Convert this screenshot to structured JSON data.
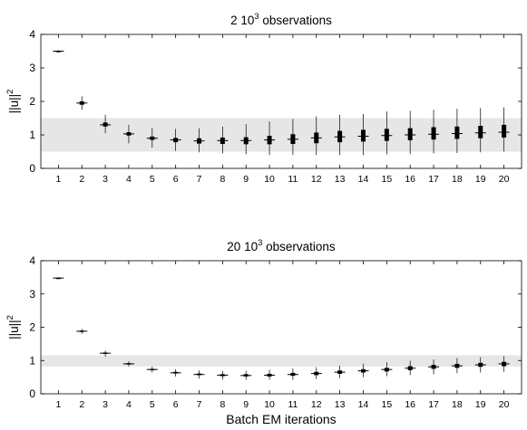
{
  "chart_data": [
    {
      "type": "boxplot",
      "title": "2 10",
      "title_sup": "3",
      "title_suffix": " observations",
      "ylabel": "||u||",
      "ylabel_sup": "2",
      "xlabel": "",
      "ylim": [
        0,
        4
      ],
      "yticks": [
        0,
        1,
        2,
        3,
        4
      ],
      "band": [
        0.5,
        1.5
      ],
      "band_color": "#e6e6e6",
      "categories": [
        "1",
        "2",
        "3",
        "4",
        "5",
        "6",
        "7",
        "8",
        "9",
        "10",
        "11",
        "12",
        "13",
        "14",
        "15",
        "16",
        "17",
        "18",
        "19",
        "20"
      ],
      "boxes": [
        {
          "median": 3.5,
          "q1": 3.49,
          "q3": 3.51,
          "lo": 3.47,
          "hi": 3.53
        },
        {
          "median": 1.95,
          "q1": 1.9,
          "q3": 2.0,
          "lo": 1.75,
          "hi": 2.15
        },
        {
          "median": 1.3,
          "q1": 1.25,
          "q3": 1.37,
          "lo": 1.05,
          "hi": 1.6
        },
        {
          "median": 1.03,
          "q1": 0.98,
          "q3": 1.08,
          "lo": 0.75,
          "hi": 1.3
        },
        {
          "median": 0.9,
          "q1": 0.85,
          "q3": 0.95,
          "lo": 0.62,
          "hi": 1.2
        },
        {
          "median": 0.85,
          "q1": 0.78,
          "q3": 0.91,
          "lo": 0.52,
          "hi": 1.18
        },
        {
          "median": 0.82,
          "q1": 0.74,
          "q3": 0.9,
          "lo": 0.48,
          "hi": 1.2
        },
        {
          "median": 0.83,
          "q1": 0.73,
          "q3": 0.92,
          "lo": 0.45,
          "hi": 1.25
        },
        {
          "median": 0.83,
          "q1": 0.72,
          "q3": 0.93,
          "lo": 0.42,
          "hi": 1.32
        },
        {
          "median": 0.85,
          "q1": 0.72,
          "q3": 0.97,
          "lo": 0.4,
          "hi": 1.4
        },
        {
          "median": 0.87,
          "q1": 0.73,
          "q3": 1.02,
          "lo": 0.4,
          "hi": 1.48
        },
        {
          "median": 0.91,
          "q1": 0.75,
          "q3": 1.07,
          "lo": 0.4,
          "hi": 1.55
        },
        {
          "median": 0.94,
          "q1": 0.78,
          "q3": 1.12,
          "lo": 0.4,
          "hi": 1.6
        },
        {
          "median": 0.96,
          "q1": 0.8,
          "q3": 1.15,
          "lo": 0.4,
          "hi": 1.62
        },
        {
          "median": 0.98,
          "q1": 0.82,
          "q3": 1.18,
          "lo": 0.42,
          "hi": 1.7
        },
        {
          "median": 1.0,
          "q1": 0.84,
          "q3": 1.2,
          "lo": 0.43,
          "hi": 1.72
        },
        {
          "median": 1.02,
          "q1": 0.86,
          "q3": 1.23,
          "lo": 0.45,
          "hi": 1.75
        },
        {
          "median": 1.04,
          "q1": 0.88,
          "q3": 1.25,
          "lo": 0.46,
          "hi": 1.78
        },
        {
          "median": 1.06,
          "q1": 0.9,
          "q3": 1.27,
          "lo": 0.48,
          "hi": 1.8
        },
        {
          "median": 1.08,
          "q1": 0.92,
          "q3": 1.3,
          "lo": 0.5,
          "hi": 1.82
        }
      ]
    },
    {
      "type": "boxplot",
      "title": "20 10",
      "title_sup": "3",
      "title_suffix": " observations",
      "ylabel": "||u||",
      "ylabel_sup": "2",
      "xlabel": "Batch EM iterations",
      "ylim": [
        0,
        4
      ],
      "yticks": [
        0,
        1,
        2,
        3,
        4
      ],
      "band": [
        0.82,
        1.16
      ],
      "band_color": "#e6e6e6",
      "categories": [
        "1",
        "2",
        "3",
        "4",
        "5",
        "6",
        "7",
        "8",
        "9",
        "10",
        "11",
        "12",
        "13",
        "14",
        "15",
        "16",
        "17",
        "18",
        "19",
        "20"
      ],
      "boxes": [
        {
          "median": 3.48,
          "q1": 3.47,
          "q3": 3.49,
          "lo": 3.46,
          "hi": 3.5
        },
        {
          "median": 1.88,
          "q1": 1.86,
          "q3": 1.9,
          "lo": 1.8,
          "hi": 1.95
        },
        {
          "median": 1.22,
          "q1": 1.2,
          "q3": 1.24,
          "lo": 1.12,
          "hi": 1.3
        },
        {
          "median": 0.9,
          "q1": 0.88,
          "q3": 0.92,
          "lo": 0.82,
          "hi": 0.98
        },
        {
          "median": 0.73,
          "q1": 0.71,
          "q3": 0.75,
          "lo": 0.64,
          "hi": 0.82
        },
        {
          "median": 0.63,
          "q1": 0.61,
          "q3": 0.66,
          "lo": 0.52,
          "hi": 0.74
        },
        {
          "median": 0.58,
          "q1": 0.56,
          "q3": 0.61,
          "lo": 0.46,
          "hi": 0.7
        },
        {
          "median": 0.56,
          "q1": 0.53,
          "q3": 0.59,
          "lo": 0.43,
          "hi": 0.68
        },
        {
          "median": 0.55,
          "q1": 0.52,
          "q3": 0.59,
          "lo": 0.42,
          "hi": 0.69
        },
        {
          "median": 0.56,
          "q1": 0.52,
          "q3": 0.6,
          "lo": 0.42,
          "hi": 0.72
        },
        {
          "median": 0.58,
          "q1": 0.54,
          "q3": 0.63,
          "lo": 0.42,
          "hi": 0.76
        },
        {
          "median": 0.61,
          "q1": 0.56,
          "q3": 0.66,
          "lo": 0.44,
          "hi": 0.8
        },
        {
          "median": 0.65,
          "q1": 0.6,
          "q3": 0.7,
          "lo": 0.47,
          "hi": 0.85
        },
        {
          "median": 0.69,
          "q1": 0.64,
          "q3": 0.74,
          "lo": 0.5,
          "hi": 0.9
        },
        {
          "median": 0.73,
          "q1": 0.67,
          "q3": 0.78,
          "lo": 0.53,
          "hi": 0.95
        },
        {
          "median": 0.77,
          "q1": 0.71,
          "q3": 0.83,
          "lo": 0.56,
          "hi": 0.99
        },
        {
          "median": 0.81,
          "q1": 0.75,
          "q3": 0.87,
          "lo": 0.59,
          "hi": 1.03
        },
        {
          "median": 0.84,
          "q1": 0.78,
          "q3": 0.9,
          "lo": 0.62,
          "hi": 1.07
        },
        {
          "median": 0.87,
          "q1": 0.81,
          "q3": 0.93,
          "lo": 0.64,
          "hi": 1.1
        },
        {
          "median": 0.9,
          "q1": 0.83,
          "q3": 0.96,
          "lo": 0.66,
          "hi": 1.13
        }
      ]
    }
  ]
}
